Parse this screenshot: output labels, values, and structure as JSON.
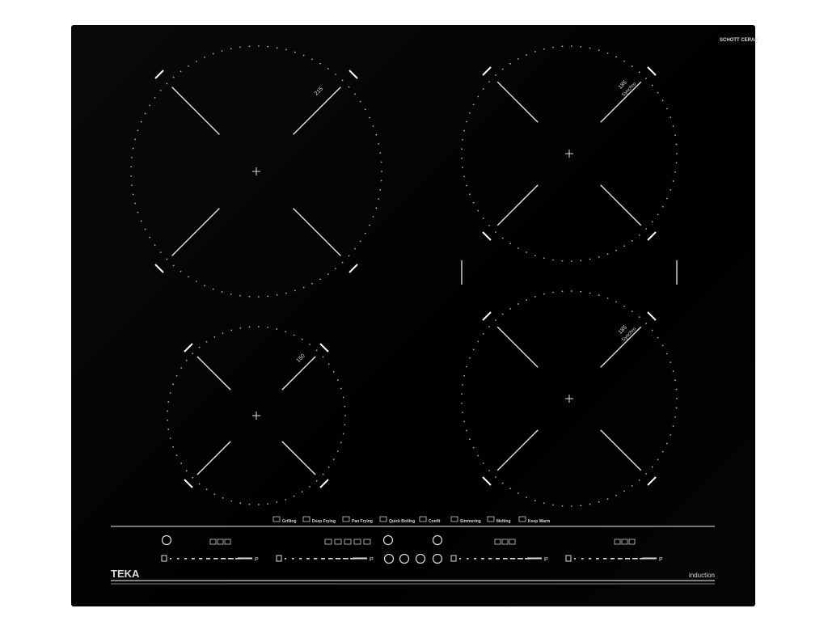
{
  "brand": "TEKA",
  "product_type": "induction",
  "glass_logo": "SCHOTT CERAN",
  "burners": [
    {
      "id": "top-left",
      "size_label": "215",
      "extra": ""
    },
    {
      "id": "bottom-left",
      "size_label": "150",
      "extra": ""
    },
    {
      "id": "top-right",
      "size_label": "185",
      "extra": "Synchro"
    },
    {
      "id": "bottom-right",
      "size_label": "185",
      "extra": "Synchro"
    }
  ],
  "functions": [
    "Grilling",
    "Deep Frying",
    "Pan Frying",
    "Quick Boiling",
    "Confit",
    "Simmering",
    "Melting",
    "Keep Warm"
  ],
  "slider_end_label": "P",
  "sliders": [
    1,
    2,
    3,
    4
  ],
  "colors": {
    "glass": "#000000",
    "print": "#dddddd"
  }
}
